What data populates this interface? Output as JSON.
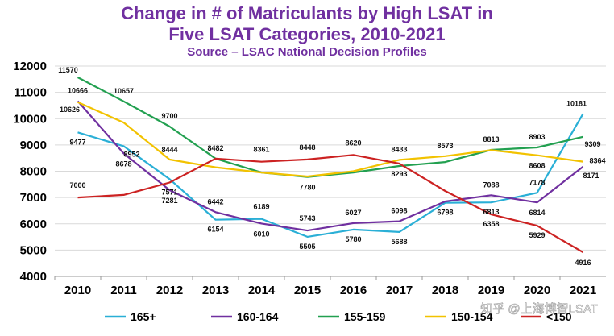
{
  "chart_data": {
    "type": "line",
    "title": "Change in # of Matriculants by High LSAT in",
    "title_line2": "Five LSAT Categories, 2010-2021",
    "subtitle": "Source – LSAC National Decision Profiles",
    "xlabel": "",
    "ylabel": "",
    "ylim": [
      4000,
      12000
    ],
    "yticks": [
      4000,
      5000,
      6000,
      7000,
      8000,
      9000,
      10000,
      11000,
      12000
    ],
    "ytick_labels": [
      "4000",
      "5000",
      "6000",
      "7000",
      "8000",
      "9000",
      "10000",
      "11000",
      "12000"
    ],
    "categories": [
      "2010",
      "2011",
      "2012",
      "2013",
      "2014",
      "2015",
      "2016",
      "2017",
      "2018",
      "2019",
      "2020",
      "2021"
    ],
    "grid": true,
    "legend_position": "bottom",
    "series": [
      {
        "name": "165+",
        "color": "#2AAFD6",
        "values": [
          9477,
          8952,
          7700,
          6154,
          6189,
          5505,
          5780,
          5688,
          6798,
          6813,
          7178,
          10181
        ],
        "labels": [
          "9477",
          "8952",
          "",
          "6154",
          "6189",
          "5505",
          "5780",
          "5688",
          "6798",
          "6813",
          "7178",
          "10181"
        ]
      },
      {
        "name": "160-164",
        "color": "#7030A0",
        "values": [
          10666,
          8678,
          7281,
          6442,
          6010,
          5743,
          6027,
          6098,
          6850,
          7088,
          6814,
          8171
        ],
        "labels": [
          "10666",
          "8678",
          "7281",
          "6442",
          "6010",
          "5743",
          "6027",
          "6098",
          "",
          "7088",
          "6814",
          "8171"
        ]
      },
      {
        "name": "155-159",
        "color": "#22A050",
        "values": [
          11570,
          10657,
          9700,
          8482,
          7950,
          7780,
          7950,
          8200,
          8350,
          8813,
          8903,
          9309
        ],
        "labels": [
          "11570",
          "10657",
          "9700",
          "8482",
          "",
          "7780",
          "",
          "",
          "",
          "8813",
          "8903",
          "9309"
        ]
      },
      {
        "name": "150-154",
        "color": "#F2C200",
        "values": [
          10626,
          9850,
          8444,
          8150,
          7950,
          7800,
          8000,
          8433,
          8573,
          8800,
          8608,
          8364
        ],
        "labels": [
          "10626",
          "",
          "8444",
          "",
          "",
          "",
          "",
          "8433",
          "8573",
          "",
          "8608",
          "8364"
        ]
      },
      {
        "name": "<150",
        "color": "#CC2222",
        "values": [
          7000,
          7100,
          7571,
          8482,
          8361,
          8448,
          8620,
          8293,
          7250,
          6358,
          5929,
          4916
        ],
        "labels": [
          "7000",
          "",
          "7571",
          "",
          "8361",
          "8448",
          "8620",
          "8293",
          "",
          "6358",
          "5929",
          "4916"
        ]
      }
    ]
  },
  "watermark": "知乎 @上海博智LSAT"
}
